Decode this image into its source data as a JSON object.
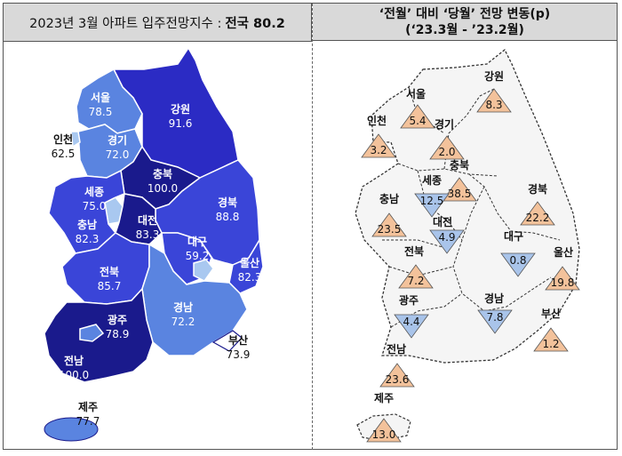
{
  "left_header": {
    "title": "2023년 3월 아파트 입주전망지수 :",
    "national": "전국 80.2"
  },
  "right_header": {
    "line1": "‘전월’ 대비 ‘당월’ 전망 변동(p)",
    "line2": "(‘23.3월  -  ’23.2월)"
  },
  "colors": {
    "dark": "#1a1a8c",
    "mid": "#2b2bc4",
    "bright": "#3a45d8",
    "light": "#5a84e0",
    "pale": "#a9c8f0",
    "increase": "#f3c29b",
    "decrease": "#a9c4ea"
  },
  "regions": [
    {
      "name": "서울",
      "index": "78.5",
      "change": "5.4",
      "direction": "up"
    },
    {
      "name": "강원",
      "index": "91.6",
      "change": "8.3",
      "direction": "up"
    },
    {
      "name": "인천",
      "index": "62.5",
      "change": "3.2",
      "direction": "up"
    },
    {
      "name": "경기",
      "index": "72.0",
      "change": "2.0",
      "direction": "up"
    },
    {
      "name": "충북",
      "index": "100.0",
      "change": "38.5",
      "direction": "up"
    },
    {
      "name": "세종",
      "index": "75.0",
      "change": "12.5",
      "direction": "down"
    },
    {
      "name": "경북",
      "index": "88.8",
      "change": "22.2",
      "direction": "up"
    },
    {
      "name": "충남",
      "index": "82.3",
      "change": "23.5",
      "direction": "up"
    },
    {
      "name": "대전",
      "index": "83.3",
      "change": "4.9",
      "direction": "down"
    },
    {
      "name": "대구",
      "index": "59.2",
      "change": "0.8",
      "direction": "down"
    },
    {
      "name": "전북",
      "index": "85.7",
      "change": "7.2",
      "direction": "up"
    },
    {
      "name": "울산",
      "index": "82.3",
      "change": "19.8",
      "direction": "up"
    },
    {
      "name": "광주",
      "index": "78.9",
      "change": "4.4",
      "direction": "down"
    },
    {
      "name": "경남",
      "index": "72.2",
      "change": "7.8",
      "direction": "down"
    },
    {
      "name": "부산",
      "index": "73.9",
      "change": "1.2",
      "direction": "up"
    },
    {
      "name": "전남",
      "index": "100.0",
      "change": "23.6",
      "direction": "up"
    },
    {
      "name": "제주",
      "index": "77.7",
      "change": "13.0",
      "direction": "up"
    }
  ]
}
